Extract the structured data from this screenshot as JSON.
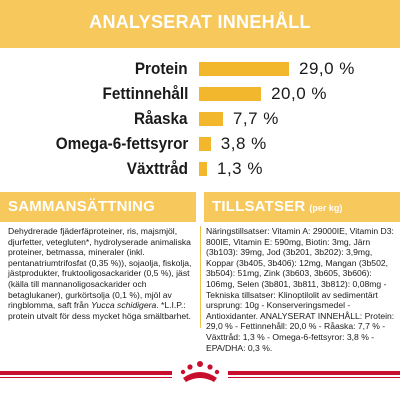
{
  "header": {
    "title": "ANALYSERAT INNEHÅLL"
  },
  "nutrients": [
    {
      "label": "Protein",
      "value": "29,0 %",
      "percent": 29.0
    },
    {
      "label": "Fettinnehåll",
      "value": "20,0 %",
      "percent": 20.0
    },
    {
      "label": "Råaska",
      "value": "7,7 %",
      "percent": 7.7
    },
    {
      "label": "Omega-6-fettsyror",
      "value": "3,8 %",
      "percent": 3.8
    },
    {
      "label": "Växttråd",
      "value": "1,3 %",
      "percent": 1.3
    }
  ],
  "composition": {
    "title": "SAMMANSÄTTNING",
    "text_before_italic": "Dehydrerade fjäderfäproteiner, ris, majsmjöl, djurfetter, vetegluten*, hydrolyserade animaliska proteiner, betmassa, mineraler (inkl. pentanatriumtrifosfat (0,35 %)), sojaolja, fiskolja, jästprodukter, fruktooligosackarider (0,5 %), jäst (källa till mannanoligosackarider och betaglukaner), gurkörtsolja (0,1 %), mjöl av ringblomma, saft från ",
    "italic": "Yucca schidigera",
    "text_after_italic": ". *L.I.P.: protein utvalt för dess mycket höga smältbarhet."
  },
  "additives": {
    "title": "TILLSATSER",
    "subtitle": "(per kg)",
    "text": "Näringstillsatser: Vitamin A: 29000IE, Vitamin D3: 800IE, Vitamin E: 590mg, Biotin: 3mg, Järn (3b103): 39mg, Jod (3b201, 3b202): 3,9mg, Koppar (3b405, 3b406): 12mg, Mangan (3b502, 3b504): 51mg, Zink (3b603, 3b605, 3b606): 106mg, Selen (3b801, 3b811, 3b812): 0,08mg - Tekniska tillsatser: Klinoptilolit av sedimentärt ursprung: 10g - Konserveringsmedel - Antioxidanter. ANALYSERAT INNEHÅLL: Protein: 29,0 % - Fettinnehåll: 20,0 % - Råaska: 7,7 % - Växttråd: 1,3 % - Omega-6-fettsyror: 3,8 % - EPA/DHA: 0,3 %."
  },
  "colors": {
    "accent": "#f7c95d",
    "bar": "#f3b72e",
    "brand_red": "#c8102e"
  },
  "icons": {
    "logo": "royal-canin-crown-logo"
  }
}
